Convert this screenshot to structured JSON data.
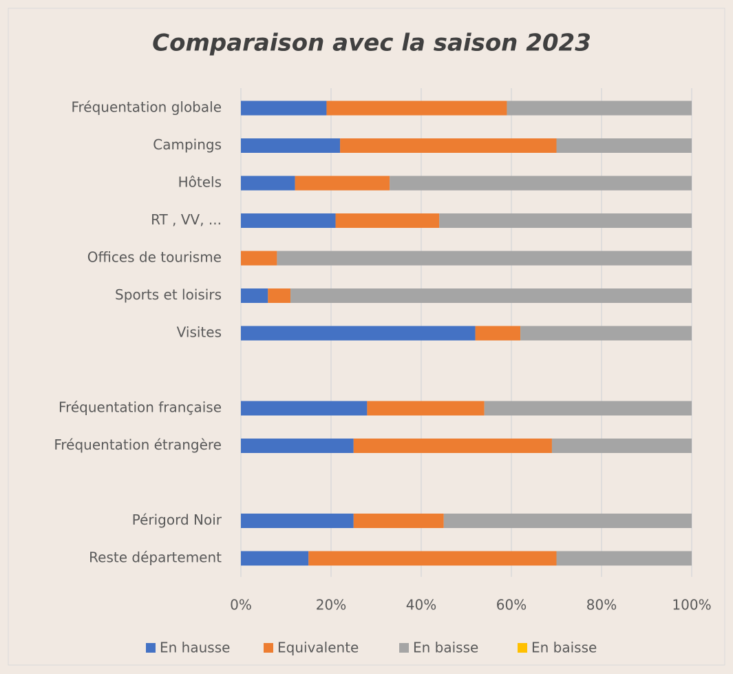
{
  "chart_data": {
    "type": "stacked_bar_horizontal",
    "title": "Comparaison avec la saison 2023",
    "categories": [
      "Fréquentation globale",
      "Campings",
      "Hôtels",
      "RT , VV, ...",
      "Offices de tourisme",
      "Sports et loisirs",
      "Visites",
      null,
      "Fréquentation française",
      "Fréquentation étrangère",
      null,
      "Périgord Noir",
      "Reste département"
    ],
    "series": [
      {
        "name": "En hausse",
        "color": "#4472c4",
        "values": [
          19,
          22,
          12,
          21,
          0,
          6,
          52,
          null,
          28,
          25,
          null,
          25,
          15
        ]
      },
      {
        "name": "Equivalente",
        "color": "#ed7d31",
        "values": [
          40,
          48,
          21,
          23,
          8,
          5,
          10,
          null,
          26,
          44,
          null,
          20,
          55
        ]
      },
      {
        "name": "En baisse",
        "color": "#a5a5a5",
        "values": [
          41,
          30,
          67,
          56,
          92,
          89,
          38,
          null,
          46,
          31,
          null,
          55,
          30
        ]
      },
      {
        "name": "En baisse",
        "color": "#ffc000",
        "values": [
          0,
          0,
          0,
          0,
          0,
          0,
          0,
          null,
          0,
          0,
          null,
          0,
          0
        ]
      }
    ],
    "xlim": [
      0,
      100
    ],
    "xticks": [
      {
        "value": 0,
        "label": "0%"
      },
      {
        "value": 20,
        "label": "20%"
      },
      {
        "value": 40,
        "label": "40%"
      },
      {
        "value": 60,
        "label": "60%"
      },
      {
        "value": 80,
        "label": "80%"
      },
      {
        "value": 100,
        "label": "100%"
      }
    ],
    "grid": true,
    "legend": "bottom"
  }
}
